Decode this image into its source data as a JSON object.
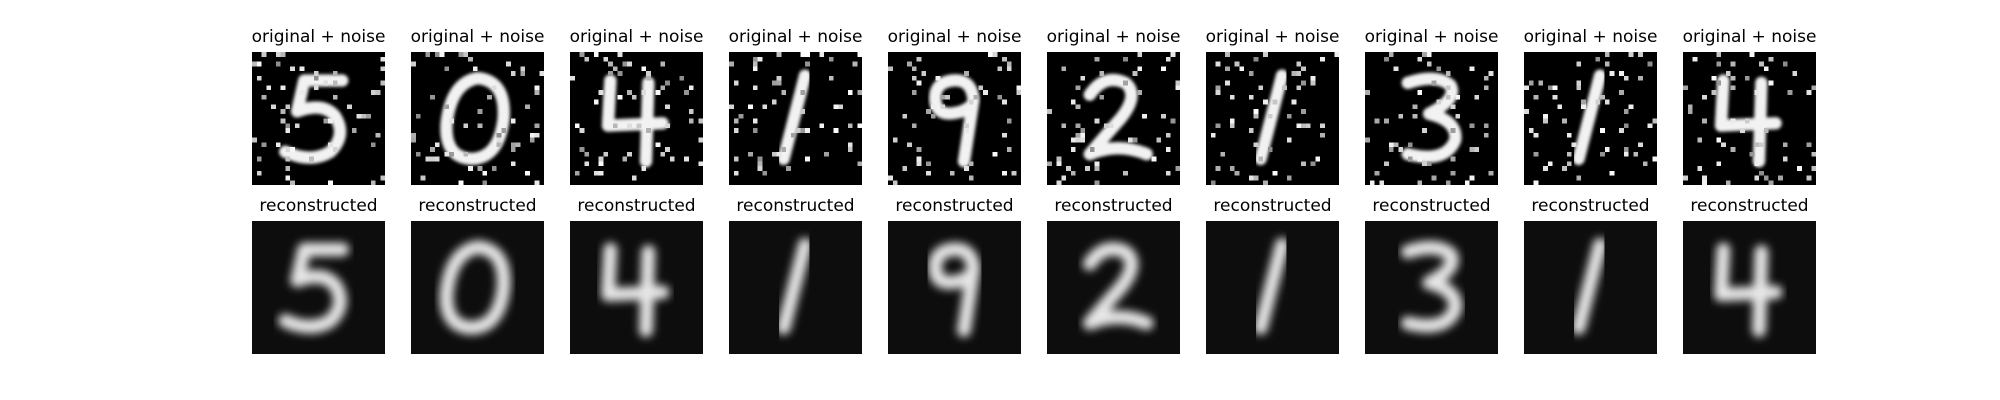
{
  "figure": {
    "background": "#ffffff",
    "image_colormap": "grayscale",
    "rows": [
      {
        "title": "original + noise",
        "noisy": true,
        "panels": [
          {
            "title": "original + noise",
            "digit": "5"
          },
          {
            "title": "original + noise",
            "digit": "0"
          },
          {
            "title": "original + noise",
            "digit": "4"
          },
          {
            "title": "original + noise",
            "digit": "1"
          },
          {
            "title": "original + noise",
            "digit": "9"
          },
          {
            "title": "original + noise",
            "digit": "2"
          },
          {
            "title": "original + noise",
            "digit": "1"
          },
          {
            "title": "original + noise",
            "digit": "3"
          },
          {
            "title": "original + noise",
            "digit": "1"
          },
          {
            "title": "original + noise",
            "digit": "4"
          }
        ]
      },
      {
        "title": "reconstructed",
        "noisy": false,
        "panels": [
          {
            "title": "reconstructed",
            "digit": "5"
          },
          {
            "title": "reconstructed",
            "digit": "0"
          },
          {
            "title": "reconstructed",
            "digit": "4"
          },
          {
            "title": "reconstructed",
            "digit": "1"
          },
          {
            "title": "reconstructed",
            "digit": "9"
          },
          {
            "title": "reconstructed",
            "digit": "2"
          },
          {
            "title": "reconstructed",
            "digit": "1"
          },
          {
            "title": "reconstructed",
            "digit": "3"
          },
          {
            "title": "reconstructed",
            "digit": "1"
          },
          {
            "title": "reconstructed",
            "digit": "4"
          }
        ]
      }
    ]
  }
}
